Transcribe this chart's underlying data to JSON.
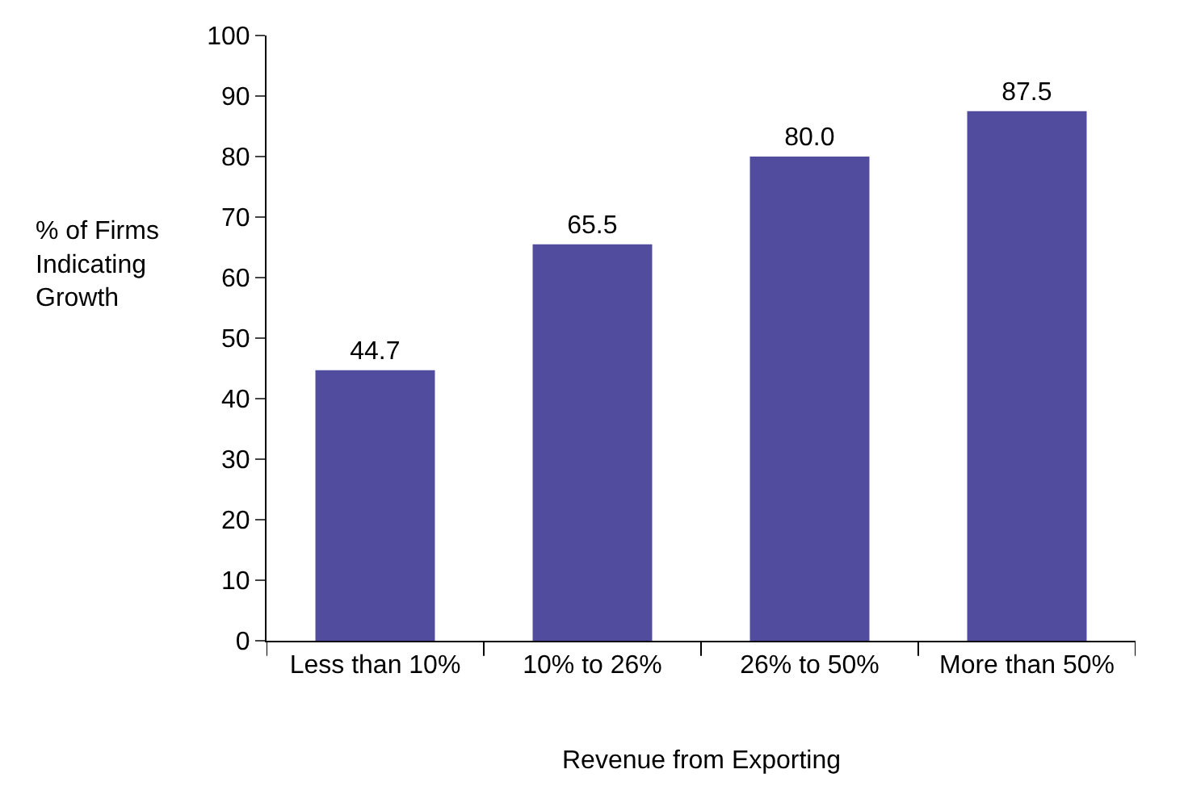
{
  "chart_data": {
    "type": "bar",
    "xlabel": "Revenue from Exporting",
    "ylabel": "% of Firms\nIndicating\nGrowth",
    "categories": [
      "Less than 10%",
      "10% to 26%",
      "26% to 50%",
      "More than 50%"
    ],
    "values": [
      44.7,
      65.5,
      80.0,
      87.5
    ],
    "value_labels": [
      "44.7",
      "65.5",
      "80.0",
      "87.5"
    ],
    "color": "#524c9f",
    "ylim": [
      0,
      100
    ],
    "yticks": [
      0,
      10,
      20,
      30,
      40,
      50,
      60,
      70,
      80,
      90,
      100
    ]
  }
}
